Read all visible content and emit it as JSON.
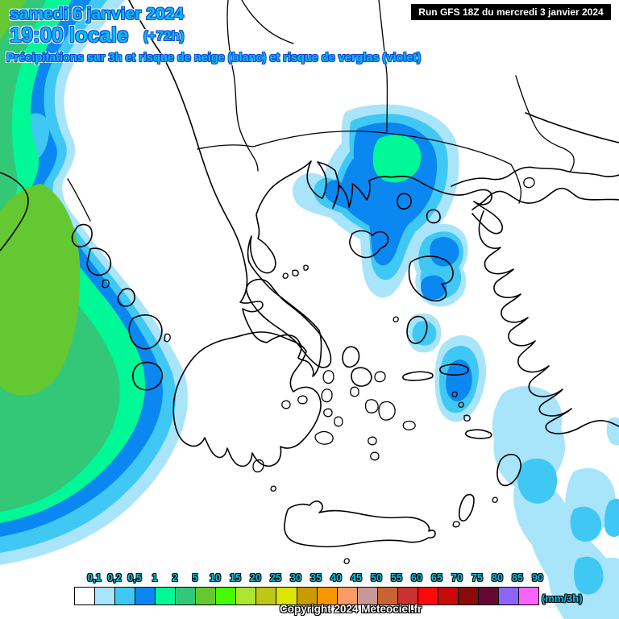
{
  "header": {
    "date": "samedi 6 janvier 2024",
    "time": "19:00 locale",
    "validity": "(+72h)",
    "subtitle": "Précipitations sur 3h et risque de neige (blanc) et risque de verglas (violet)",
    "run": "Run GFS 18Z du mercredi 3 janvier 2024"
  },
  "legend": {
    "unit": "(mm/3h)",
    "labels": [
      "0,1",
      "0,2",
      "0,5",
      "1",
      "2",
      "5",
      "10",
      "15",
      "20",
      "25",
      "30",
      "35",
      "40",
      "45",
      "50",
      "55",
      "60",
      "65",
      "70",
      "75",
      "80",
      "85",
      "90"
    ],
    "colors": [
      "#ffffff",
      "#a8e4fa",
      "#40c8f4",
      "#0a87f0",
      "#00f896",
      "#32c878",
      "#64c832",
      "#46fa00",
      "#aae632",
      "#bec814",
      "#dce600",
      "#c89b00",
      "#fa9600",
      "#fa9b64",
      "#c89696",
      "#c86432",
      "#c83232",
      "#fa0a0a",
      "#c80a0a",
      "#8c0a0a",
      "#640a32",
      "#8c64fa",
      "#fa64fa"
    ]
  },
  "footer": {
    "copyright": "Copyright 2024 Meteociel.fr"
  },
  "colors": {
    "title_fill": "#00bfff",
    "title_outline": "#1646c8",
    "legend_label_fill": "#00c8f0",
    "run_bg": "#000000",
    "run_text": "#ffffff",
    "coastline": "#000000",
    "background": "#ffffff"
  }
}
